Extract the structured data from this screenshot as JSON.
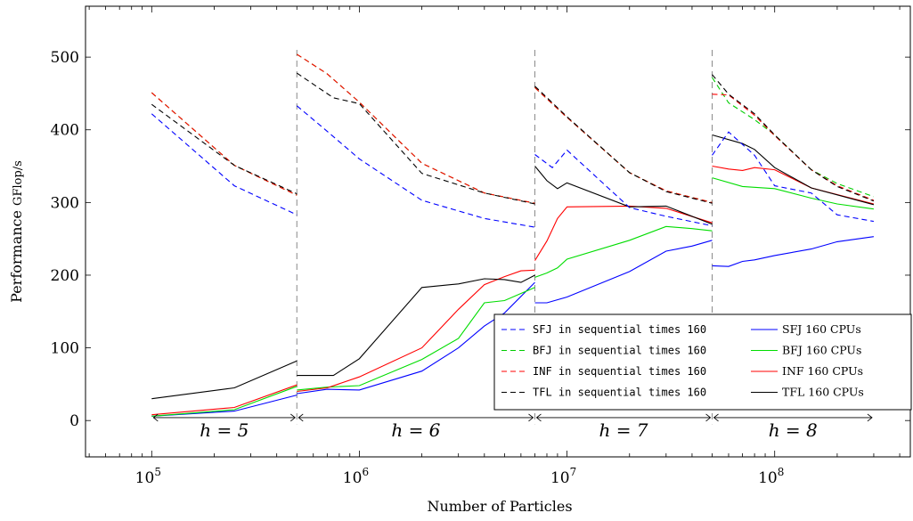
{
  "chart_data": {
    "type": "line",
    "xlabel": "Number of Particles",
    "ylabel_main": "Performance",
    "ylabel_unit": "GFlop/s",
    "x_scale": "log",
    "xlim": [
      48000,
      450000000
    ],
    "ylim": [
      -50,
      570
    ],
    "x_ticks": [
      {
        "value": 100000,
        "base": "10",
        "exp": "5"
      },
      {
        "value": 1000000,
        "base": "10",
        "exp": "6"
      },
      {
        "value": 10000000,
        "base": "10",
        "exp": "7"
      },
      {
        "value": 100000000,
        "base": "10",
        "exp": "8"
      }
    ],
    "y_ticks": [
      0,
      100,
      200,
      300,
      400,
      500
    ],
    "region_boundaries": [
      500000,
      7000000,
      50000000
    ],
    "regions": [
      {
        "label": "h = 5",
        "from": 100000,
        "to": 500000
      },
      {
        "label": "h = 6",
        "from": 500000,
        "to": 7000000
      },
      {
        "label": "h = 7",
        "from": 7000000,
        "to": 50000000
      },
      {
        "label": "h = 8",
        "from": 50000000,
        "to": 300000000
      }
    ],
    "legend_position": "lower-right",
    "series": [
      {
        "name": "SFJ in sequential times 160",
        "color": "#0000ff",
        "dashed": true,
        "segments": [
          [
            [
              100000,
              422
            ],
            [
              250000,
              323
            ],
            [
              500000,
              283
            ]
          ],
          [
            [
              500000,
              433
            ],
            [
              700000,
              398
            ],
            [
              1000000,
              360
            ],
            [
              2000000,
              303
            ],
            [
              4000000,
              278
            ],
            [
              7000000,
              266
            ]
          ],
          [
            [
              7000000,
              366
            ],
            [
              8500000,
              348
            ],
            [
              10000000,
              372
            ],
            [
              20000000,
              293
            ],
            [
              30000000,
              281
            ],
            [
              50000000,
              268
            ]
          ],
          [
            [
              50000000,
              365
            ],
            [
              60000000,
              397
            ],
            [
              80000000,
              365
            ],
            [
              100000000,
              323
            ],
            [
              150000000,
              313
            ],
            [
              200000000,
              283
            ],
            [
              300000000,
              274
            ]
          ]
        ]
      },
      {
        "name": "BFJ in sequential times 160",
        "color": "#00cc00",
        "dashed": true,
        "segments": [
          [
            [
              100000,
              451
            ],
            [
              250000,
              351
            ],
            [
              500000,
              310
            ]
          ],
          [
            [
              500000,
              504
            ],
            [
              700000,
              477
            ],
            [
              1000000,
              438
            ],
            [
              2000000,
              354
            ],
            [
              4000000,
              313
            ],
            [
              7000000,
              299
            ]
          ],
          [
            [
              7000000,
              458
            ],
            [
              10000000,
              417
            ],
            [
              20000000,
              341
            ],
            [
              30000000,
              316
            ],
            [
              50000000,
              300
            ]
          ],
          [
            [
              50000000,
              472
            ],
            [
              60000000,
              437
            ],
            [
              80000000,
              414
            ],
            [
              100000000,
              393
            ],
            [
              150000000,
              345
            ],
            [
              200000000,
              326
            ],
            [
              300000000,
              308
            ]
          ]
        ]
      },
      {
        "name": "INF in sequential times 160",
        "color": "#ff0000",
        "dashed": true,
        "segments": [
          [
            [
              100000,
              451
            ],
            [
              250000,
              351
            ],
            [
              500000,
              310
            ]
          ],
          [
            [
              500000,
              504
            ],
            [
              700000,
              477
            ],
            [
              1000000,
              438
            ],
            [
              2000000,
              354
            ],
            [
              4000000,
              313
            ],
            [
              7000000,
              299
            ]
          ],
          [
            [
              7000000,
              458
            ],
            [
              10000000,
              417
            ],
            [
              20000000,
              341
            ],
            [
              30000000,
              316
            ],
            [
              50000000,
              300
            ]
          ],
          [
            [
              50000000,
              449
            ],
            [
              60000000,
              448
            ],
            [
              80000000,
              420
            ],
            [
              100000000,
              392
            ],
            [
              150000000,
              345
            ],
            [
              200000000,
              323
            ],
            [
              300000000,
              303
            ]
          ]
        ]
      },
      {
        "name": "TFL in sequential times 160",
        "color": "#000000",
        "dashed": true,
        "segments": [
          [
            [
              100000,
              435
            ],
            [
              250000,
              351
            ],
            [
              500000,
              312
            ]
          ],
          [
            [
              500000,
              478
            ],
            [
              750000,
              444
            ],
            [
              1000000,
              436
            ],
            [
              2000000,
              340
            ],
            [
              4000000,
              313
            ],
            [
              7000000,
              298
            ]
          ],
          [
            [
              7000000,
              460
            ],
            [
              10000000,
              418
            ],
            [
              20000000,
              341
            ],
            [
              30000000,
              315
            ],
            [
              50000000,
              299
            ]
          ],
          [
            [
              50000000,
              476
            ],
            [
              60000000,
              449
            ],
            [
              80000000,
              422
            ],
            [
              100000000,
              393
            ],
            [
              150000000,
              345
            ],
            [
              200000000,
              322
            ],
            [
              300000000,
              302
            ]
          ]
        ]
      },
      {
        "name": "SFJ 160 CPUs",
        "color": "#0000ff",
        "dashed": false,
        "segments": [
          [
            [
              100000,
              6
            ],
            [
              250000,
              13
            ],
            [
              500000,
              35
            ]
          ],
          [
            [
              500000,
              37
            ],
            [
              700000,
              43
            ],
            [
              1000000,
              42
            ],
            [
              2000000,
              68
            ],
            [
              3000000,
              100
            ],
            [
              4000000,
              130
            ],
            [
              5000000,
              148
            ],
            [
              7000000,
              190
            ]
          ],
          [
            [
              7000000,
              162
            ],
            [
              8000000,
              162
            ],
            [
              10000000,
              170
            ],
            [
              20000000,
              205
            ],
            [
              30000000,
              233
            ],
            [
              40000000,
              240
            ],
            [
              50000000,
              248
            ]
          ],
          [
            [
              50000000,
              213
            ],
            [
              60000000,
              212
            ],
            [
              70000000,
              219
            ],
            [
              80000000,
              221
            ],
            [
              100000000,
              227
            ],
            [
              150000000,
              236
            ],
            [
              200000000,
              246
            ],
            [
              300000000,
              253
            ]
          ]
        ]
      },
      {
        "name": "BFJ 160 CPUs",
        "color": "#00dd00",
        "dashed": false,
        "segments": [
          [
            [
              100000,
              6
            ],
            [
              250000,
              15
            ],
            [
              500000,
              47
            ]
          ],
          [
            [
              500000,
              42
            ],
            [
              700000,
              46
            ],
            [
              1000000,
              48
            ],
            [
              2000000,
              84
            ],
            [
              3000000,
              113
            ],
            [
              4000000,
              162
            ],
            [
              5000000,
              165
            ],
            [
              7000000,
              183
            ]
          ],
          [
            [
              7000000,
              197
            ],
            [
              8000000,
              203
            ],
            [
              9000000,
              210
            ],
            [
              10000000,
              222
            ],
            [
              20000000,
              248
            ],
            [
              30000000,
              267
            ],
            [
              40000000,
              264
            ],
            [
              50000000,
              261
            ]
          ],
          [
            [
              50000000,
              334
            ],
            [
              70000000,
              322
            ],
            [
              100000000,
              319
            ],
            [
              150000000,
              306
            ],
            [
              200000000,
              298
            ],
            [
              300000000,
              291
            ]
          ]
        ]
      },
      {
        "name": "INF 160 CPUs",
        "color": "#ff0000",
        "dashed": false,
        "segments": [
          [
            [
              100000,
              8
            ],
            [
              250000,
              18
            ],
            [
              500000,
              49
            ]
          ],
          [
            [
              500000,
              40
            ],
            [
              700000,
              45
            ],
            [
              1000000,
              60
            ],
            [
              2000000,
              100
            ],
            [
              3000000,
              153
            ],
            [
              4000000,
              187
            ],
            [
              5000000,
              198
            ],
            [
              6000000,
              206
            ],
            [
              7000000,
              207
            ]
          ],
          [
            [
              7000000,
              220
            ],
            [
              8000000,
              247
            ],
            [
              9000000,
              278
            ],
            [
              10000000,
              294
            ],
            [
              20000000,
              295
            ],
            [
              30000000,
              292
            ],
            [
              50000000,
              272
            ]
          ],
          [
            [
              50000000,
              350
            ],
            [
              60000000,
              346
            ],
            [
              70000000,
              344
            ],
            [
              80000000,
              348
            ],
            [
              100000000,
              345
            ],
            [
              150000000,
              320
            ],
            [
              300000000,
              298
            ]
          ]
        ]
      },
      {
        "name": "TFL 160 CPUs",
        "color": "#000000",
        "dashed": false,
        "segments": [
          [
            [
              100000,
              30
            ],
            [
              250000,
              45
            ],
            [
              500000,
              82
            ]
          ],
          [
            [
              500000,
              62
            ],
            [
              750000,
              62
            ],
            [
              1000000,
              85
            ],
            [
              2000000,
              183
            ],
            [
              3000000,
              188
            ],
            [
              4000000,
              195
            ],
            [
              5000000,
              194
            ],
            [
              6000000,
              190
            ],
            [
              7000000,
              200
            ]
          ],
          [
            [
              7000000,
              350
            ],
            [
              8000000,
              330
            ],
            [
              9000000,
              319
            ],
            [
              10000000,
              327
            ],
            [
              20000000,
              294
            ],
            [
              30000000,
              295
            ],
            [
              50000000,
              270
            ]
          ],
          [
            [
              50000000,
              393
            ],
            [
              70000000,
              381
            ],
            [
              80000000,
              373
            ],
            [
              100000000,
              348
            ],
            [
              150000000,
              320
            ],
            [
              300000000,
              297
            ]
          ]
        ]
      }
    ]
  }
}
